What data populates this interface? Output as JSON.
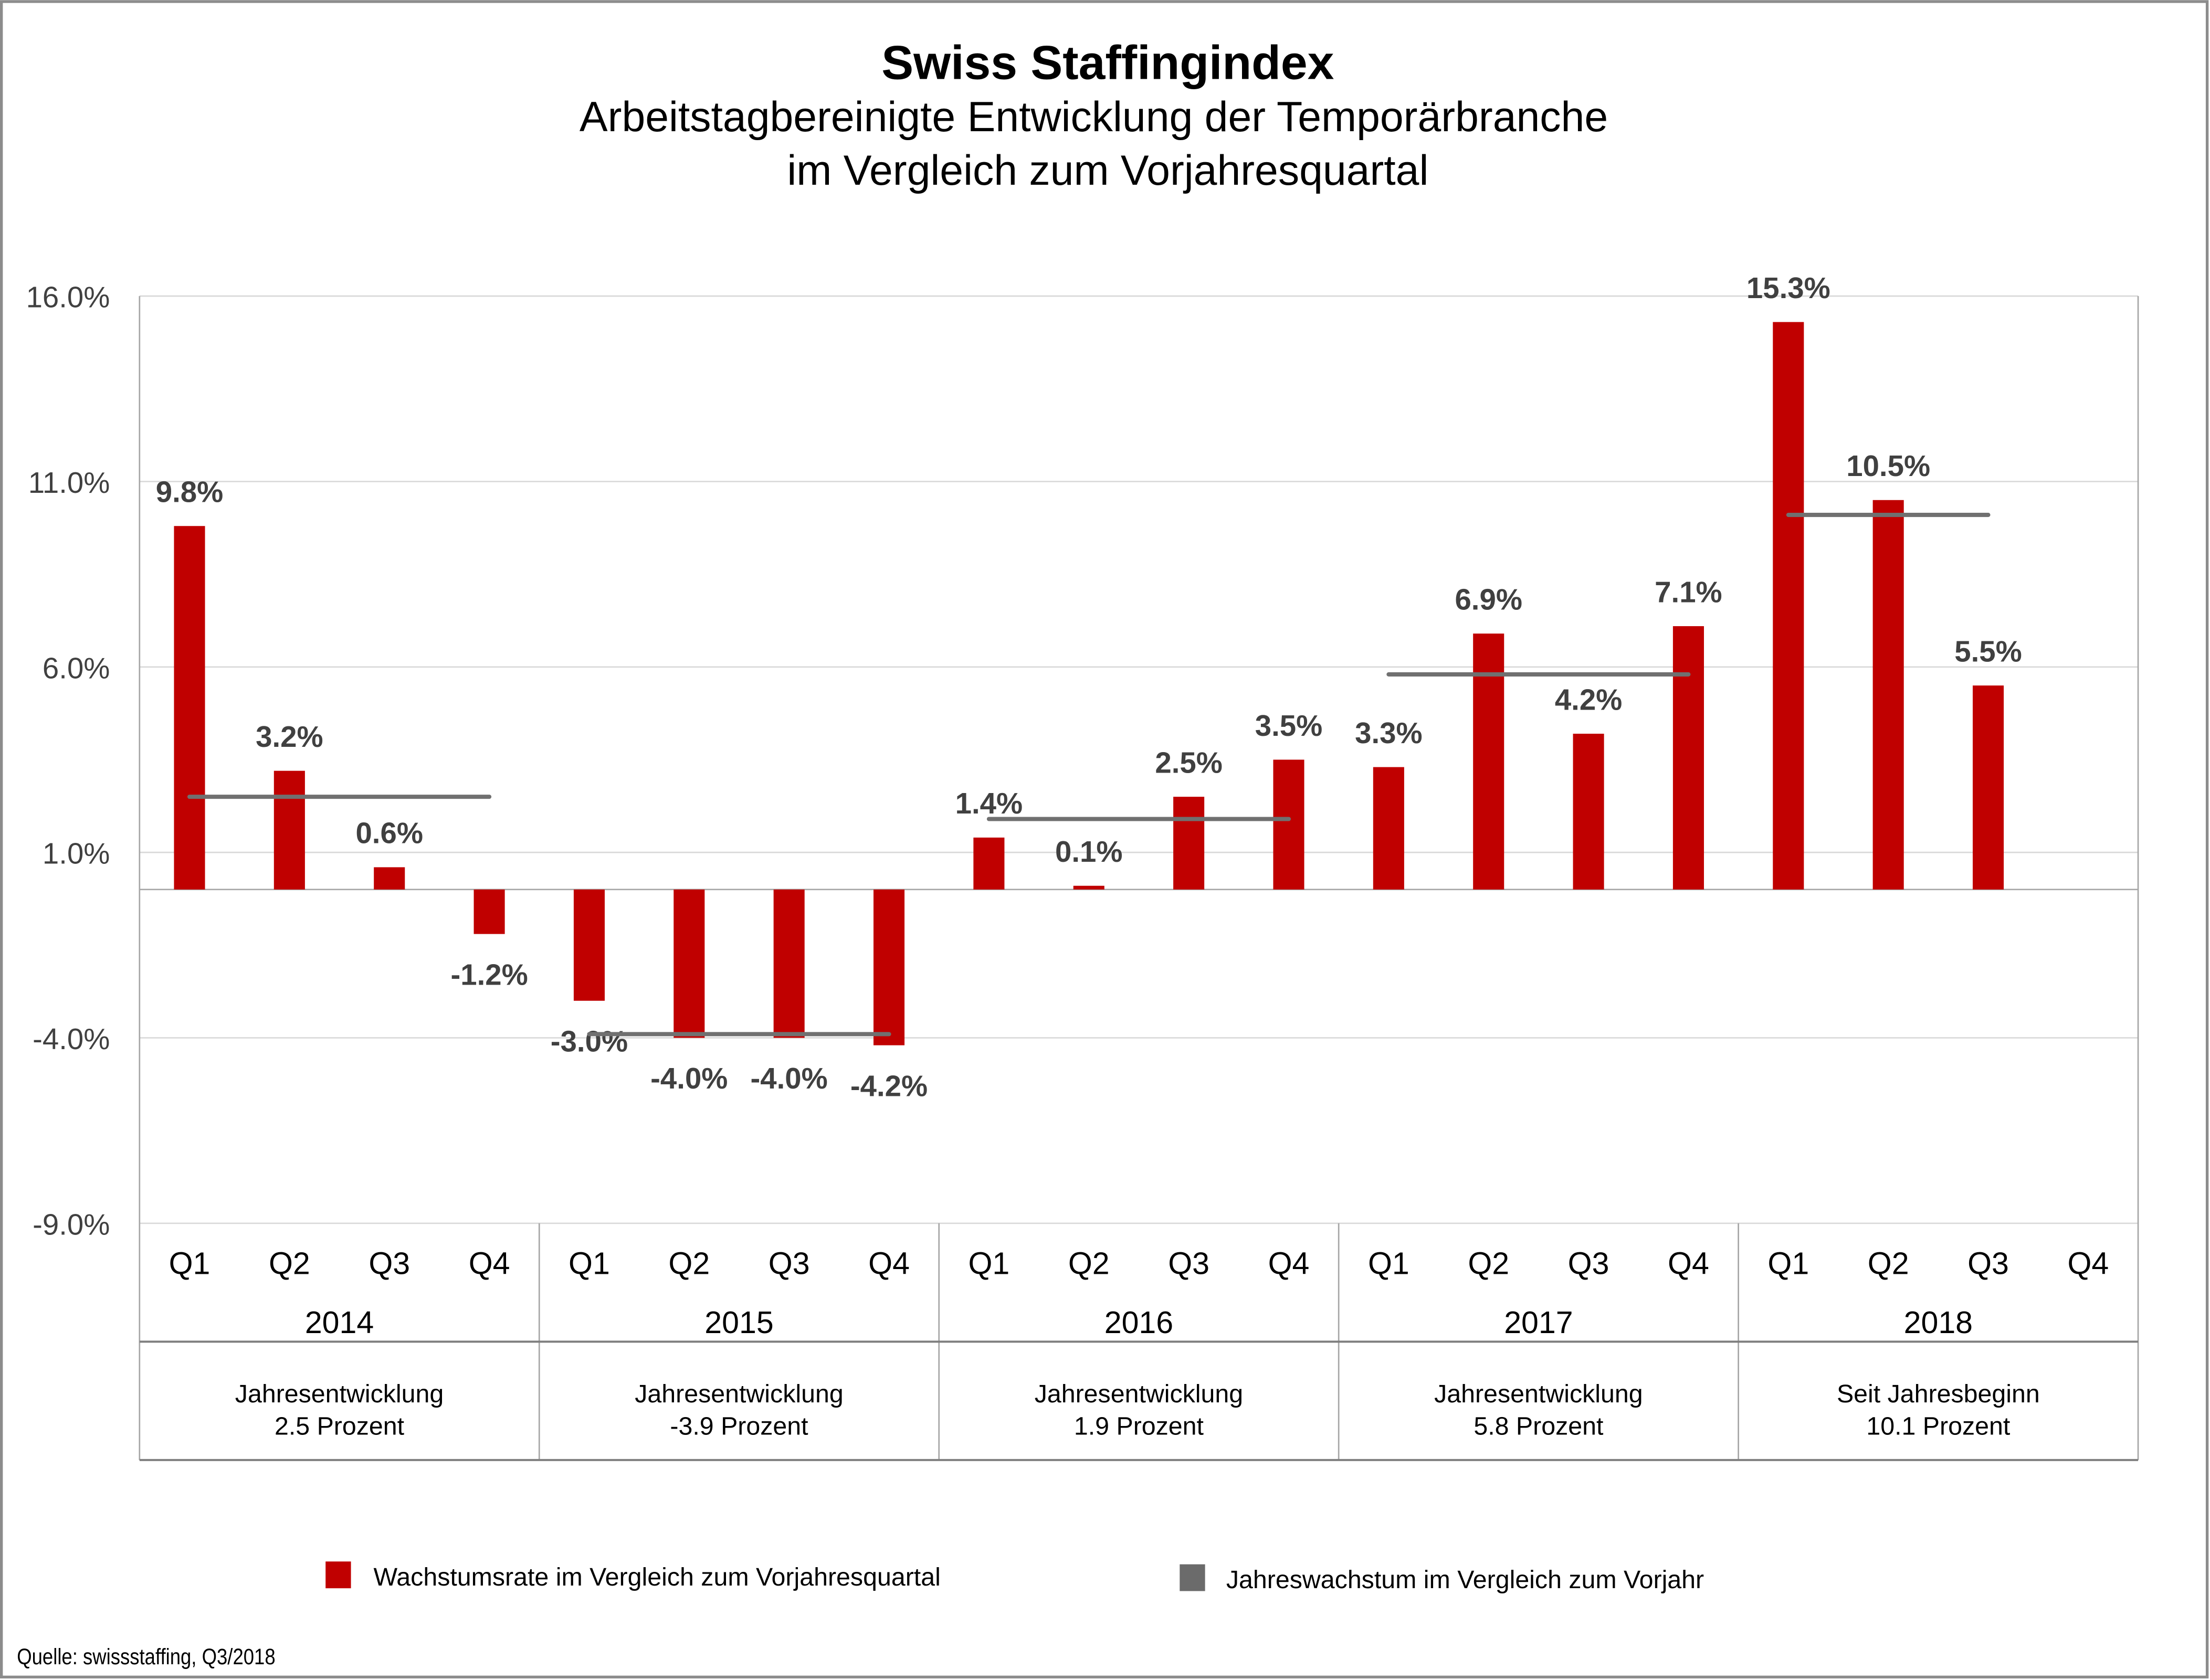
{
  "chart_data": {
    "type": "bar",
    "title": "Swiss Staffingindex",
    "subtitle": [
      "Arbeitstagbereinigte Entwicklung der Temporärbranche",
      "im Vergleich zum Vorjahresquartal"
    ],
    "ylim": [
      -9,
      16
    ],
    "yticks": [
      "16.0%",
      "11.0%",
      "6.0%",
      "1.0%",
      "-4.0%",
      "-9.0%"
    ],
    "ytick_values": [
      16,
      11,
      6,
      1,
      -4,
      -9
    ],
    "grid": true,
    "quarters": [
      "Q1",
      "Q2",
      "Q3",
      "Q4"
    ],
    "years": [
      "2014",
      "2015",
      "2016",
      "2017",
      "2018"
    ],
    "series": [
      {
        "name": "Wachstumsrate im Vergleich zum Vorjahresquartal",
        "type": "bar",
        "color": "#C00000",
        "values": [
          9.8,
          3.2,
          0.6,
          -1.2,
          -3.0,
          -4.0,
          -4.0,
          -4.2,
          1.4,
          0.1,
          2.5,
          3.5,
          3.3,
          6.9,
          4.2,
          7.1,
          15.3,
          10.5,
          5.5,
          null
        ],
        "labels": [
          "9.8%",
          "3.2%",
          "0.6%",
          "-1.2%",
          "-3.0%",
          "-4.0%",
          "-4.0%",
          "-4.2%",
          "1.4%",
          "0.1%",
          "2.5%",
          "3.5%",
          "3.3%",
          "6.9%",
          "4.2%",
          "7.1%",
          "15.3%",
          "10.5%",
          "5.5%",
          ""
        ]
      },
      {
        "name": "Jahreswachstum im Vergleich zum Vorjahr",
        "type": "line",
        "color": "#707070",
        "values": [
          2.5,
          -3.9,
          1.9,
          5.8,
          10.1
        ]
      }
    ],
    "annual_table": [
      {
        "line1": "Jahresentwicklung",
        "line2": "2.5 Prozent"
      },
      {
        "line1": "Jahresentwicklung",
        "line2": "-3.9 Prozent"
      },
      {
        "line1": "Jahresentwicklung",
        "line2": "1.9 Prozent"
      },
      {
        "line1": "Jahresentwicklung",
        "line2": "5.8 Prozent"
      },
      {
        "line1": "Seit Jahresbeginn",
        "line2": "10.1 Prozent"
      }
    ],
    "legend_position": "bottom",
    "source": "Quelle: swissstaffing, Q3/2018"
  }
}
